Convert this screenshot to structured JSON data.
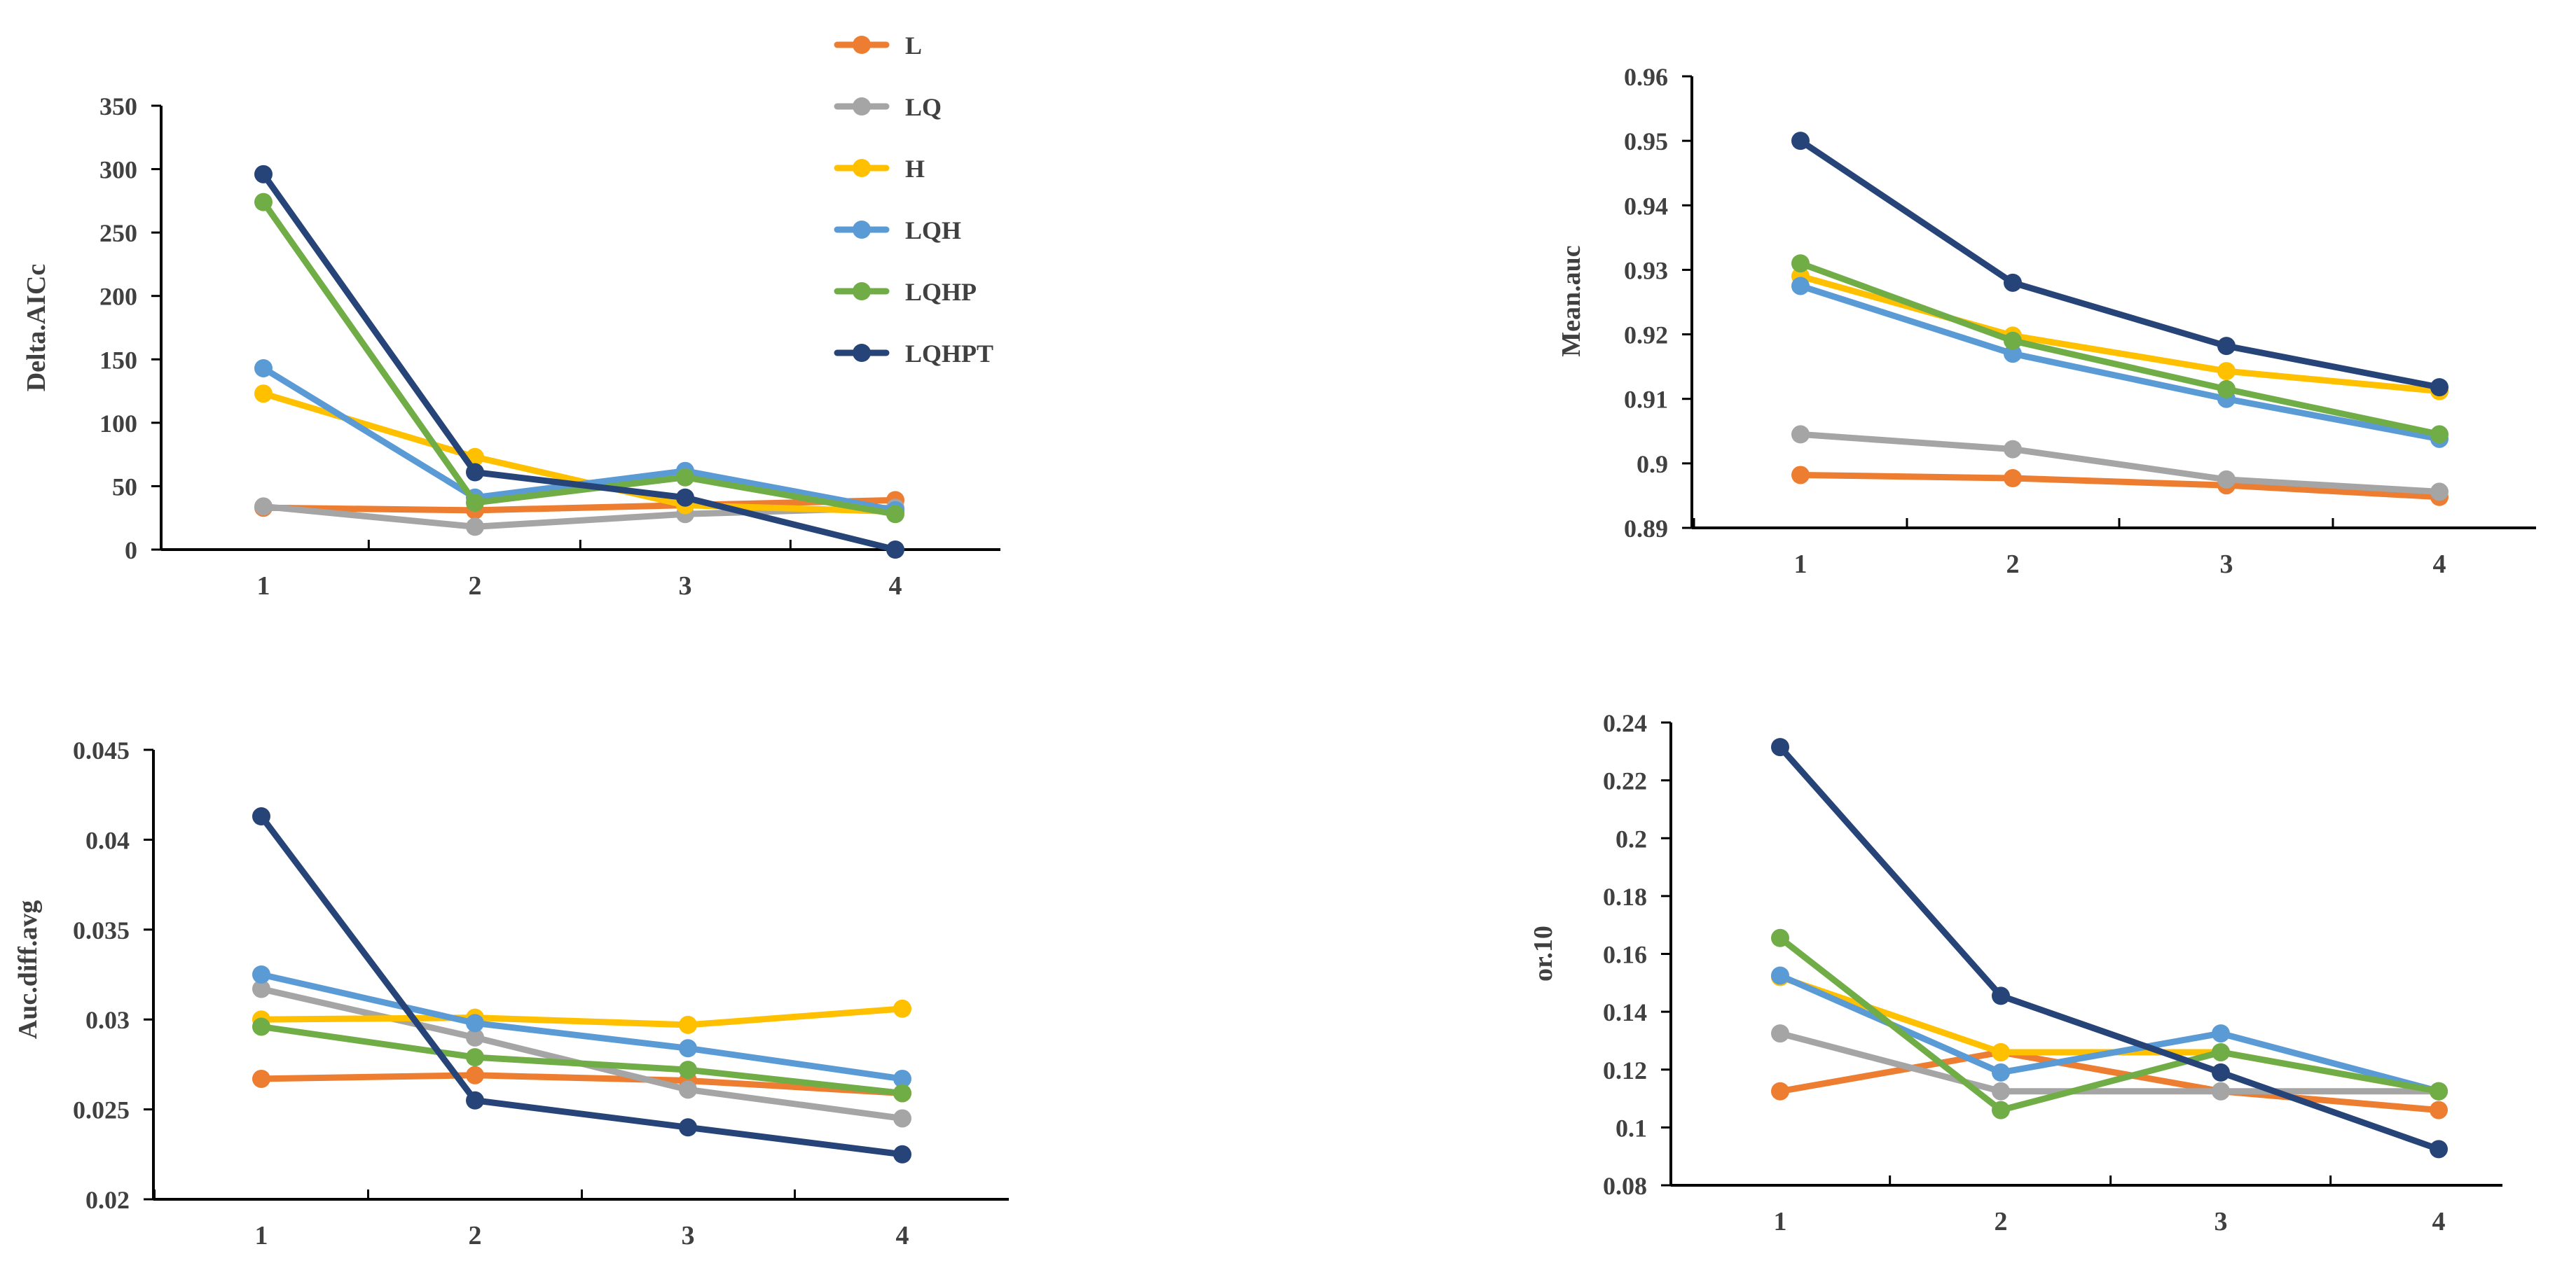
{
  "legend": [
    {
      "name": "L",
      "color": "#ED7D31"
    },
    {
      "name": "LQ",
      "color": "#A5A5A5"
    },
    {
      "name": "H",
      "color": "#FFC000"
    },
    {
      "name": "LQH",
      "color": "#5B9BD5"
    },
    {
      "name": "LQHP",
      "color": "#70AD47"
    },
    {
      "name": "LQHPT",
      "color": "#264478"
    }
  ],
  "chart_data": [
    {
      "type": "line",
      "ylabel": "Delta.AICc",
      "x": [
        1,
        2,
        3,
        4
      ],
      "ylim": [
        0,
        350
      ],
      "yticks": [
        "0",
        "50",
        "100",
        "150",
        "200",
        "250",
        "300",
        "350"
      ],
      "series": [
        {
          "name": "L",
          "values": [
            33,
            31,
            35,
            39
          ]
        },
        {
          "name": "LQ",
          "values": [
            34,
            18,
            28,
            33
          ]
        },
        {
          "name": "H",
          "values": [
            123,
            73,
            35,
            30
          ]
        },
        {
          "name": "LQH",
          "values": [
            143,
            41,
            62,
            31
          ]
        },
        {
          "name": "LQHP",
          "values": [
            274,
            37,
            57,
            28
          ]
        },
        {
          "name": "LQHPT",
          "values": [
            296,
            61,
            41,
            0
          ]
        }
      ]
    },
    {
      "type": "line",
      "ylabel": "Mean.auc",
      "x": [
        1,
        2,
        3,
        4
      ],
      "ylim": [
        0.89,
        0.96
      ],
      "yticks": [
        "0.89",
        "0.9",
        "0.91",
        "0.92",
        "0.93",
        "0.94",
        "0.95",
        "0.96"
      ],
      "series": [
        {
          "name": "L",
          "values": [
            0.8982,
            0.8977,
            0.8966,
            0.8948
          ]
        },
        {
          "name": "LQ",
          "values": [
            0.9045,
            0.9022,
            0.8975,
            0.8956
          ]
        },
        {
          "name": "H",
          "values": [
            0.929,
            0.9198,
            0.9143,
            0.9112
          ]
        },
        {
          "name": "LQH",
          "values": [
            0.9275,
            0.917,
            0.91,
            0.9038
          ]
        },
        {
          "name": "LQHP",
          "values": [
            0.931,
            0.919,
            0.9115,
            0.9045
          ]
        },
        {
          "name": "LQHPT",
          "values": [
            0.95,
            0.928,
            0.9182,
            0.9118
          ]
        }
      ]
    },
    {
      "type": "line",
      "ylabel": "Auc.diff.avg",
      "x": [
        1,
        2,
        3,
        4
      ],
      "ylim": [
        0.02,
        0.045
      ],
      "yticks": [
        "0.02",
        "0.025",
        "0.03",
        "0.035",
        "0.04",
        "0.045"
      ],
      "series": [
        {
          "name": "L",
          "values": [
            0.0267,
            0.0269,
            0.0266,
            0.0259
          ]
        },
        {
          "name": "LQ",
          "values": [
            0.0317,
            0.029,
            0.0261,
            0.0245
          ]
        },
        {
          "name": "H",
          "values": [
            0.03,
            0.0301,
            0.0297,
            0.0306
          ]
        },
        {
          "name": "LQH",
          "values": [
            0.0325,
            0.0298,
            0.0284,
            0.0267
          ]
        },
        {
          "name": "LQHP",
          "values": [
            0.0296,
            0.0279,
            0.0272,
            0.0259
          ]
        },
        {
          "name": "LQHPT",
          "values": [
            0.0413,
            0.0255,
            0.024,
            0.0225
          ]
        }
      ]
    },
    {
      "type": "line",
      "ylabel": "or.10",
      "x": [
        1,
        2,
        3,
        4
      ],
      "ylim": [
        0.08,
        0.24
      ],
      "yticks": [
        "0.08",
        "0.1",
        "0.12",
        "0.14",
        "0.16",
        "0.18",
        "0.2",
        "0.22",
        "0.24"
      ],
      "series": [
        {
          "name": "L",
          "values": [
            0.1125,
            0.126,
            0.1125,
            0.106
          ]
        },
        {
          "name": "LQ",
          "values": [
            0.1325,
            0.1125,
            0.1125,
            0.1125
          ]
        },
        {
          "name": "H",
          "values": [
            0.152,
            0.126,
            0.126,
            0.1125
          ]
        },
        {
          "name": "LQH",
          "values": [
            0.1525,
            0.119,
            0.1325,
            0.1125
          ]
        },
        {
          "name": "LQHP",
          "values": [
            0.1655,
            0.106,
            0.126,
            0.1125
          ]
        },
        {
          "name": "LQHPT",
          "values": [
            0.2315,
            0.1455,
            0.119,
            0.0925
          ]
        }
      ]
    }
  ]
}
